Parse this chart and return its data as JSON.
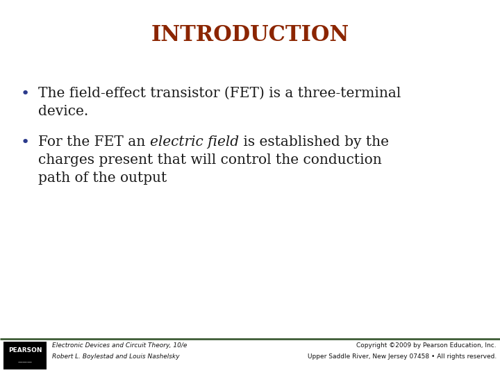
{
  "title": "INTRODUCTION",
  "title_color": "#8B2500",
  "title_fontsize": 22,
  "background_color": "#FFFFFF",
  "bullet_color": "#2B3A8B",
  "text_color": "#1a1a1a",
  "bullet1_line1": "The field-effect transistor (FET) is a three-terminal",
  "bullet1_line2": "device.",
  "bullet2_prefix": "For the FET an ",
  "bullet2_italic": "electric field",
  "bullet2_suffix": " is established by the",
  "bullet2_line2": "charges present that will control the conduction",
  "bullet2_line3": "path of the output",
  "footer_left_line1": "Electronic Devices and Circuit Theory, 10/e",
  "footer_left_line2": "Robert L. Boylestad and Louis Nashelsky",
  "footer_right_line1": "Copyright ©2009 by Pearson Education, Inc.",
  "footer_right_line2": "Upper Saddle River, New Jersey 07458 • All rights reserved.",
  "footer_fontsize": 6.5,
  "footer_color": "#111111",
  "footer_bar_color": "#3d5c35",
  "pearson_bg": "#000000",
  "pearson_text": "#FFFFFF",
  "content_fontsize": 14.5,
  "bullet_dot_fontsize": 16
}
